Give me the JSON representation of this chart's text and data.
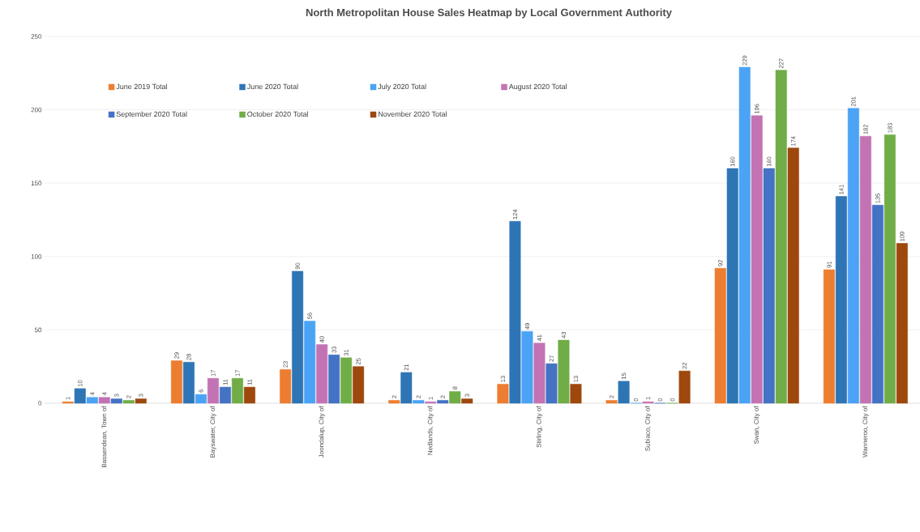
{
  "chart_data": {
    "type": "bar",
    "title": "North Metropolitan House Sales Heatmap by Local Government Authority",
    "categories": [
      "Bassendean, Town of",
      "Bayswater, City of",
      "Joondalup, City of",
      "Nedlands, City of",
      "Stirling, City of",
      "Subiaco, City of",
      "Swan, City of",
      "Wanneroo, City of"
    ],
    "series": [
      {
        "name": "June 2019 Total",
        "color": "#ed7d31",
        "values": [
          1,
          29,
          23,
          2,
          13,
          2,
          92,
          91
        ]
      },
      {
        "name": "June 2020 Total",
        "color": "#2e75b6",
        "values": [
          10,
          28,
          90,
          21,
          124,
          15,
          160,
          141
        ]
      },
      {
        "name": "July 2020 Total",
        "color": "#4ba3f5",
        "values": [
          4,
          6,
          56,
          2,
          49,
          0,
          229,
          201
        ]
      },
      {
        "name": "August 2020 Total",
        "color": "#c373b3",
        "values": [
          4,
          17,
          40,
          1,
          41,
          1,
          196,
          182
        ]
      },
      {
        "name": "September 2020 Total",
        "color": "#4472c4",
        "values": [
          3,
          11,
          33,
          2,
          27,
          0,
          160,
          135
        ]
      },
      {
        "name": "October 2020 Total",
        "color": "#70ad47",
        "values": [
          2,
          17,
          31,
          8,
          43,
          0,
          227,
          183
        ]
      },
      {
        "name": "November 2020 Total",
        "color": "#9e480e",
        "values": [
          3,
          11,
          25,
          3,
          13,
          22,
          174,
          109
        ]
      }
    ],
    "ylim": [
      0,
      250
    ],
    "yticks": [
      0,
      50,
      100,
      150,
      200,
      250
    ],
    "grid": "y",
    "legend": "top left",
    "data_labels": true
  }
}
